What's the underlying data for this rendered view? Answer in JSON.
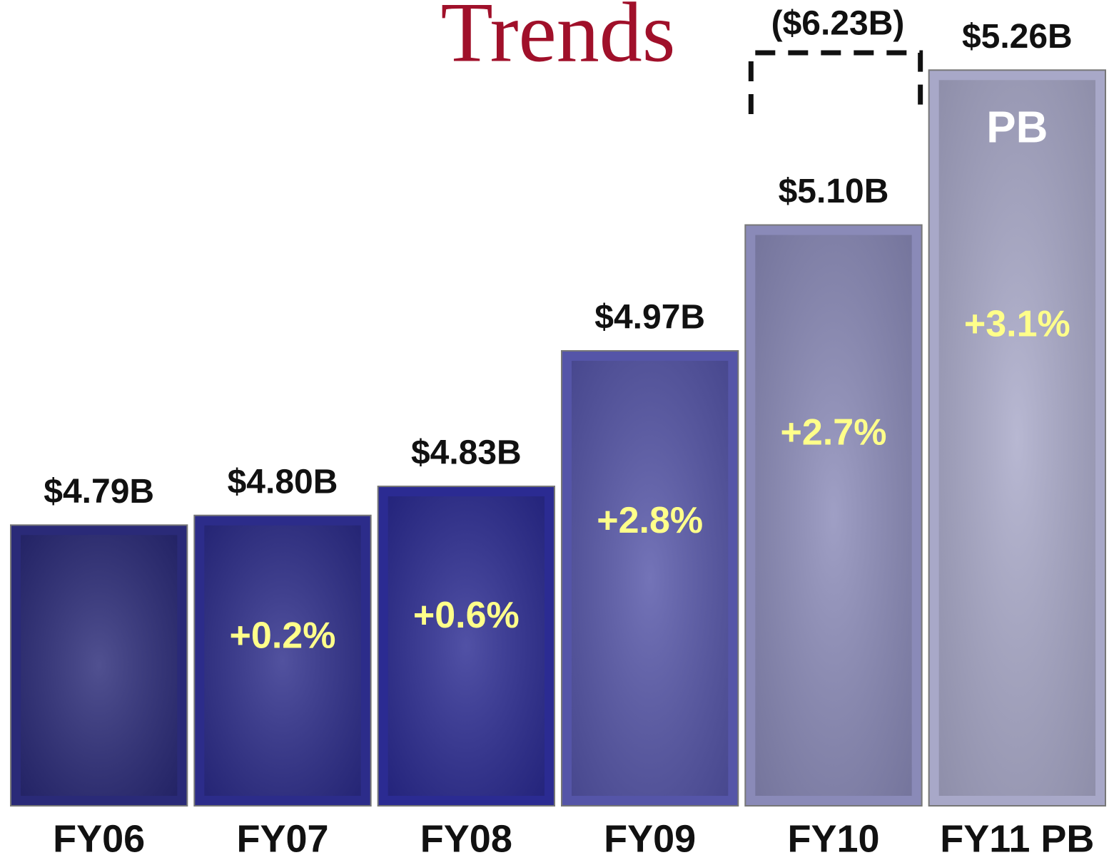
{
  "chart_data": {
    "type": "bar",
    "title": "Trends",
    "categories": [
      "FY06",
      "FY07",
      "FY08",
      "FY09",
      "FY10",
      "FY11 PB"
    ],
    "values": [
      4.79,
      4.8,
      4.83,
      4.97,
      5.1,
      5.26
    ],
    "value_labels": [
      "$4.79B",
      "$4.80B",
      "$4.83B",
      "$4.97B",
      "$5.10B",
      "$5.26B"
    ],
    "growth_labels": [
      null,
      "+0.2%",
      "+0.6%",
      "+2.8%",
      "+2.7%",
      "+3.1%"
    ],
    "colors": [
      "#2a2a78",
      "#2c2c8a",
      "#2b2b92",
      "#5555a8",
      "#8a8ab8",
      "#a8a8c8"
    ],
    "bar_note": "PB",
    "dashed_value": 6.23,
    "dashed_label": "($6.23B)",
    "ylim": [
      4.5,
      5.3
    ]
  }
}
